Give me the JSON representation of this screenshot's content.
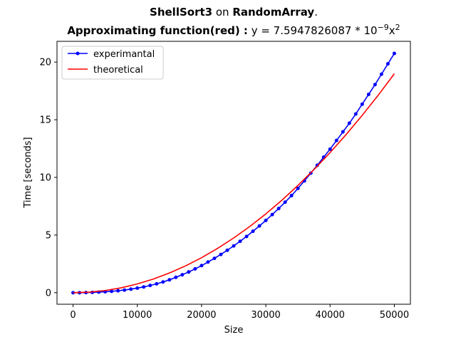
{
  "title": {
    "line1": {
      "algo": "ShellSort3",
      "on": " on ",
      "data": "RandomArray",
      "dot": "."
    },
    "line2": {
      "label": "Approximating function(red) :",
      "formula_prefix": " y = 7.5947826087 * 10",
      "exp_neg9": "−9",
      "x": "x",
      "exp2": "2"
    }
  },
  "chart_data": {
    "type": "line",
    "xlabel": "Size",
    "ylabel": "Time [seconds]",
    "xlim": [
      -2500,
      52500
    ],
    "ylim": [
      -1.0,
      21.8
    ],
    "xticks": [
      0,
      10000,
      20000,
      30000,
      40000,
      50000
    ],
    "yticks": [
      0,
      5,
      10,
      15,
      20
    ],
    "grid": false,
    "legend_position": "upper-left",
    "series": [
      {
        "name": "experimantal",
        "color": "#0000ff",
        "marker": "dot",
        "x": [
          0,
          1000,
          2000,
          3000,
          4000,
          5000,
          6000,
          7000,
          8000,
          9000,
          10000,
          11000,
          12000,
          13000,
          14000,
          15000,
          16000,
          17000,
          18000,
          19000,
          20000,
          21000,
          22000,
          23000,
          24000,
          25000,
          26000,
          27000,
          28000,
          29000,
          30000,
          31000,
          32000,
          33000,
          34000,
          35000,
          36000,
          37000,
          38000,
          39000,
          40000,
          41000,
          42000,
          43000,
          44000,
          45000,
          46000,
          47000,
          48000,
          49000,
          50000
        ],
        "y": [
          0.0,
          0.0,
          0.01,
          0.03,
          0.05,
          0.08,
          0.12,
          0.17,
          0.23,
          0.31,
          0.4,
          0.5,
          0.63,
          0.77,
          0.93,
          1.12,
          1.33,
          1.56,
          1.8,
          2.07,
          2.35,
          2.66,
          2.98,
          3.32,
          3.68,
          4.06,
          4.46,
          4.88,
          5.33,
          5.79,
          6.27,
          6.78,
          7.3,
          7.85,
          8.42,
          9.05,
          9.7,
          10.37,
          11.05,
          11.75,
          12.45,
          13.2,
          13.95,
          14.7,
          15.5,
          16.35,
          17.2,
          18.05,
          18.95,
          19.85,
          20.75
        ]
      },
      {
        "name": "theoretical",
        "color": "#ff0000",
        "marker": "none",
        "x": [
          0,
          2500,
          5000,
          7500,
          10000,
          12500,
          15000,
          17500,
          20000,
          22500,
          25000,
          27500,
          30000,
          32500,
          35000,
          37500,
          40000,
          42500,
          45000,
          47500,
          50000
        ],
        "y": [
          0.0,
          0.047,
          0.19,
          0.427,
          0.759,
          1.187,
          1.709,
          2.326,
          3.038,
          3.845,
          4.747,
          5.744,
          6.835,
          8.022,
          9.304,
          10.68,
          12.152,
          13.718,
          15.379,
          17.135,
          18.987
        ]
      }
    ]
  }
}
